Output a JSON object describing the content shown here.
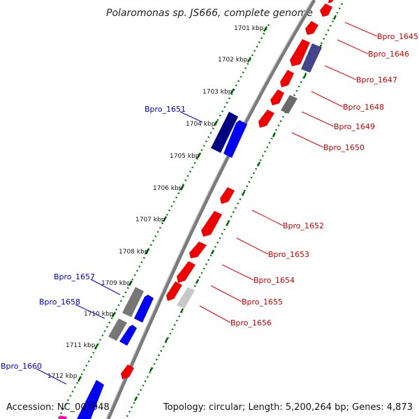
{
  "title": "Polaromonas sp. JS666, complete genome",
  "footer": {
    "accession": "Accession: NC_007948",
    "topology": "Topology: circular; Length: 5,200,264 bp; Genes: 4,873"
  },
  "colors": {
    "forward_gene": "#0000ee",
    "reverse_gene": "#ee0000",
    "other_gene": "#777777",
    "dark_blue_gene": "#000080",
    "purple_gene": "#44448a",
    "light_gray_gene": "#c8c8c8",
    "pink_gene": "#ff00aa",
    "axis": "#7a7a7a",
    "tick": "#008000",
    "label_red": "#cc0000",
    "label_blue": "#0000cc"
  },
  "ticks": [
    {
      "kbp": 1701,
      "label": "1701 kbp"
    },
    {
      "kbp": 1702,
      "label": "1702 kbp"
    },
    {
      "kbp": 1703,
      "label": "1703 kbp"
    },
    {
      "kbp": 1704,
      "label": "1704 kbp"
    },
    {
      "kbp": 1705,
      "label": "1705 kbp"
    },
    {
      "kbp": 1706,
      "label": "1706 kbp"
    },
    {
      "kbp": 1707,
      "label": "1707 kbp"
    },
    {
      "kbp": 1708,
      "label": "1708 kbp"
    },
    {
      "kbp": 1709,
      "label": "1709 kbp"
    },
    {
      "kbp": 1710,
      "label": "1710 kbp"
    },
    {
      "kbp": 1711,
      "label": "1711 kbp"
    },
    {
      "kbp": 1712,
      "label": "1712 kbp"
    }
  ],
  "gene_labels_right": [
    "Bpro_1645",
    "Bpro_1646",
    "Bpro_1647",
    "Bpro_1648",
    "Bpro_1649",
    "Bpro_1650",
    "Bpro_1652",
    "Bpro_1653",
    "Bpro_1654",
    "Bpro_1655",
    "Bpro_1656"
  ],
  "gene_labels_left": [
    "Bpro_1651",
    "Bpro_1657",
    "Bpro_1658",
    "Bpro_1660"
  ]
}
